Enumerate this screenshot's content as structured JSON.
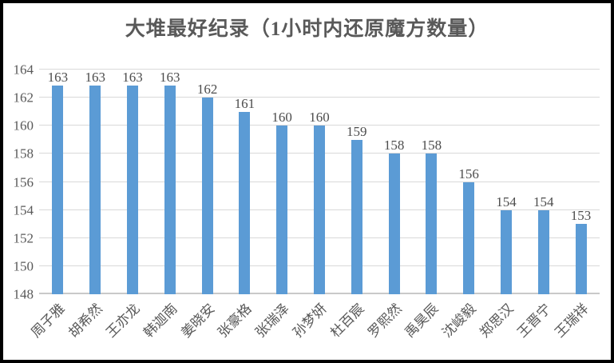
{
  "chart_data": {
    "type": "bar",
    "title": "大堆最好纪录（1小时内还原魔方数量）",
    "categories": [
      "周子雅",
      "胡希然",
      "王亦龙",
      "韩迦南",
      "姜晓安",
      "张豪格",
      "张瑞泽",
      "孙梦妍",
      "杜百宸",
      "罗熙然",
      "禹昊辰",
      "沈峻毅",
      "郑思汉",
      "王晋宁",
      "王瑞祥"
    ],
    "values": [
      163,
      163,
      163,
      163,
      162,
      161,
      160,
      160,
      159,
      158,
      158,
      156,
      154,
      154,
      153
    ],
    "data_labels": [
      163,
      163,
      163,
      163,
      162,
      161,
      160,
      160,
      159,
      158,
      158,
      156,
      154,
      154,
      153
    ],
    "xlabel": "",
    "ylabel": "",
    "ylim": [
      148,
      164
    ],
    "yticks": [
      148,
      150,
      152,
      154,
      156,
      158,
      160,
      162,
      164
    ],
    "grid": true,
    "legend_position": "none",
    "x_label_rotation_deg": 45
  },
  "colors": {
    "bar": "#5b9bd5",
    "gridline": "#d9d9d9",
    "axis_line": "#c9c9c9",
    "tick_text": "#595959",
    "title_text": "#595959",
    "data_label_text": "#4d4d4d",
    "background": "#ffffff",
    "frame_border": "#000000"
  }
}
